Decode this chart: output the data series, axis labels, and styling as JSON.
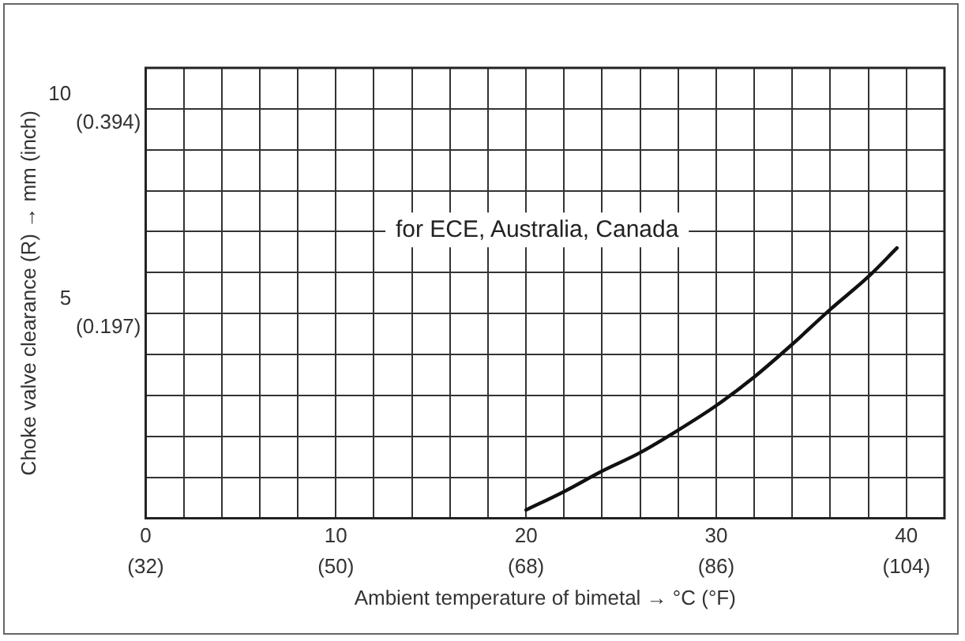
{
  "chart_data": {
    "type": "line",
    "xlabel": "Ambient temperature of bimetal → °C (°F)",
    "ylabel": "Choke valve clearance (R) → mm (inch)",
    "annotations": [
      "for ECE, Australia, Canada"
    ],
    "series": [
      {
        "color": "#111111",
        "x": [
          20,
          22,
          24,
          26,
          28,
          30,
          32,
          34,
          36,
          38,
          39.5
        ],
        "values": [
          0.2,
          0.65,
          1.15,
          1.6,
          2.15,
          2.75,
          3.45,
          4.25,
          5.1,
          5.9,
          6.6
        ]
      }
    ],
    "xlim": [
      0,
      42
    ],
    "xticks": [
      0,
      {
        "value": 2,
        "label": null
      },
      {
        "value": 4,
        "label": null
      },
      {
        "value": 6,
        "label": null
      },
      {
        "value": 8,
        "label": null
      },
      10,
      {
        "value": 12,
        "label": null
      },
      {
        "value": 14,
        "label": null
      },
      {
        "value": 16,
        "label": null
      },
      {
        "value": 18,
        "label": null
      },
      20,
      {
        "value": 22,
        "label": null
      },
      {
        "value": 24,
        "label": null
      },
      {
        "value": 26,
        "label": null
      },
      {
        "value": 28,
        "label": null
      },
      30,
      {
        "value": 32,
        "label": null
      },
      {
        "value": 34,
        "label": null
      },
      {
        "value": 36,
        "label": null
      },
      {
        "value": 38,
        "label": null
      },
      40
    ],
    "x2lim": [
      32,
      107.6
    ],
    "x2ticks": [
      {
        "value": 32,
        "label": "(32)"
      },
      {
        "value": 50,
        "label": "(50)"
      },
      {
        "value": 68,
        "label": "(68)"
      },
      {
        "value": 86,
        "label": "(86)"
      },
      {
        "value": 104,
        "label": "(104)"
      }
    ],
    "ylim": [
      0,
      11
    ],
    "yticks": [
      {
        "value": 1,
        "label": null
      },
      {
        "value": 2,
        "label": null
      },
      {
        "value": 3,
        "label": null
      },
      {
        "value": 4,
        "label": null
      },
      5,
      {
        "value": 6,
        "label": null
      },
      {
        "value": 7,
        "label": null
      },
      {
        "value": 8,
        "label": null
      },
      {
        "value": 9,
        "label": null
      },
      10
    ],
    "y2lim": [
      0,
      0.433
    ],
    "y2ticks": [
      {
        "value": 0.197,
        "label": "(0.197)"
      },
      {
        "value": 0.394,
        "label": "(0.394)"
      }
    ],
    "grid": true,
    "legend": false,
    "marker": "none",
    "line_style": "solid"
  }
}
